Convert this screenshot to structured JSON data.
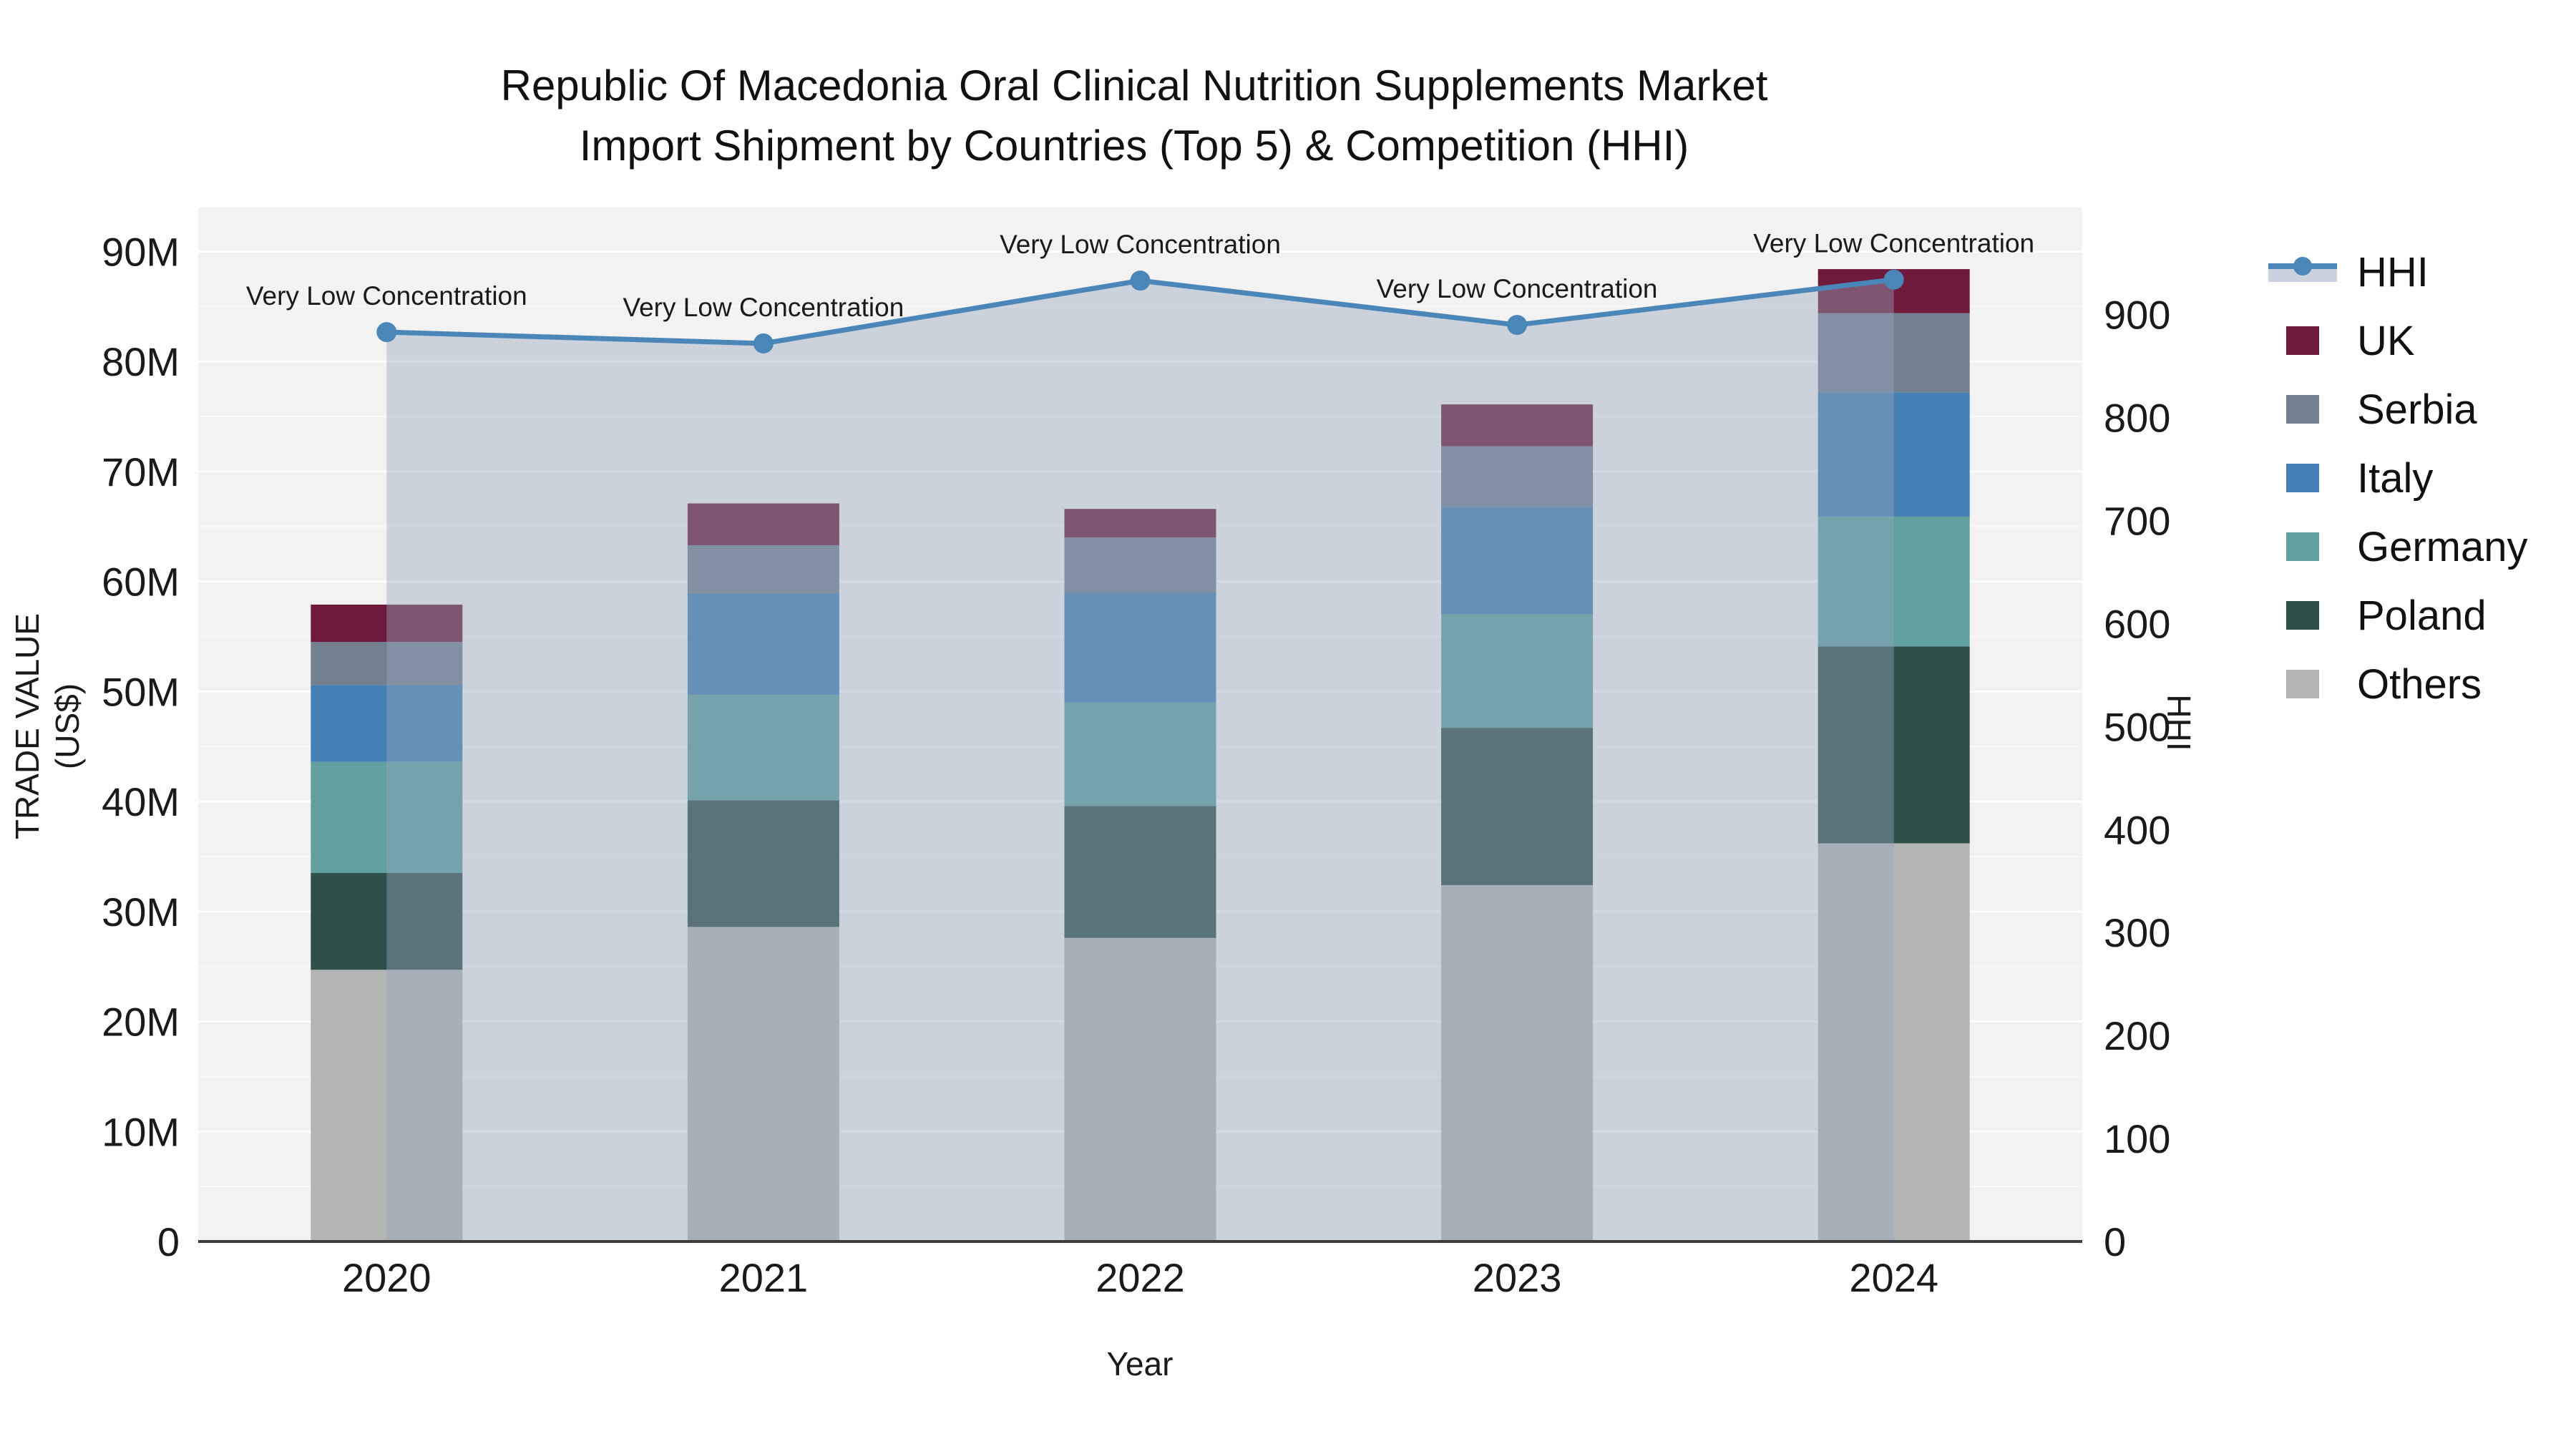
{
  "chart": {
    "title_line1": "Republic Of Macedonia Oral Clinical Nutrition Supplements Market",
    "title_line2": "Import Shipment by Countries (Top 5) & Competition (HHI)"
  },
  "chart_data": {
    "type": "combo: stacked-bar + line (dual axis)",
    "title": "Republic Of Macedonia Oral Clinical Nutrition Supplements Market Import Shipment by Countries (Top 5) & Competition (HHI)",
    "categories": [
      "2020",
      "2021",
      "2022",
      "2023",
      "2024"
    ],
    "x": {
      "title": "Year"
    },
    "y_left": {
      "title": "TRADE VALUE (US$)",
      "unit": "M US$",
      "range": [
        0,
        94
      ],
      "tick_values": [
        0,
        10,
        20,
        30,
        40,
        50,
        60,
        70,
        80,
        90
      ],
      "tick_labels": [
        "0",
        "10M",
        "20M",
        "30M",
        "40M",
        "50M",
        "60M",
        "70M",
        "80M",
        "90M"
      ],
      "minor_tick_step": 5
    },
    "y_right": {
      "title": "HHI",
      "range": [
        0,
        1004
      ],
      "tick_values": [
        0,
        100,
        200,
        300,
        400,
        500,
        600,
        700,
        800,
        900
      ],
      "tick_labels": [
        "0",
        "100",
        "200",
        "300",
        "400",
        "500",
        "600",
        "700",
        "800",
        "900"
      ]
    },
    "bar_series": [
      {
        "name": "Others",
        "color": "#b3b5b4",
        "values": [
          24.7,
          28.6,
          27.6,
          32.4,
          36.2
        ]
      },
      {
        "name": "Poland",
        "color": "#2f4f4b",
        "values": [
          8.8,
          11.5,
          12.0,
          14.3,
          17.9
        ]
      },
      {
        "name": "Germany",
        "color": "#60a09e",
        "values": [
          10.1,
          9.6,
          9.4,
          10.3,
          11.8
        ]
      },
      {
        "name": "Italy",
        "color": "#4580b4",
        "values": [
          7.0,
          9.2,
          10.0,
          9.8,
          11.3
        ]
      },
      {
        "name": "Serbia",
        "color": "#73808f",
        "values": [
          3.9,
          4.4,
          5.0,
          5.5,
          7.2
        ]
      },
      {
        "name": "UK",
        "color": "#6e1a3c",
        "values": [
          3.4,
          3.8,
          2.6,
          3.8,
          4.0
        ]
      }
    ],
    "bar_totals_musd": [
      57.9,
      67.1,
      66.6,
      76.1,
      88.4
    ],
    "line_series": {
      "name": "HHI",
      "axis": "right",
      "color": "#4a86b8",
      "area_fill": "rgba(151,166,191,0.42)",
      "legend_band_color": "#c9d2de",
      "values": [
        883,
        872,
        933,
        890,
        934
      ]
    },
    "point_annotations": [
      "Very Low Concentration",
      "Very Low Concentration",
      "Very Low Concentration",
      "Very Low Concentration",
      "Very Low Concentration"
    ],
    "legend": {
      "order": [
        "HHI",
        "UK",
        "Serbia",
        "Italy",
        "Germany",
        "Poland",
        "Others"
      ],
      "position": "right"
    },
    "style": {
      "plot_bg": "#f2f2f2",
      "gridline_color": "#ffffff",
      "axis_line_color": "#3c3c3c",
      "text_color": "#1a1a1a"
    }
  }
}
